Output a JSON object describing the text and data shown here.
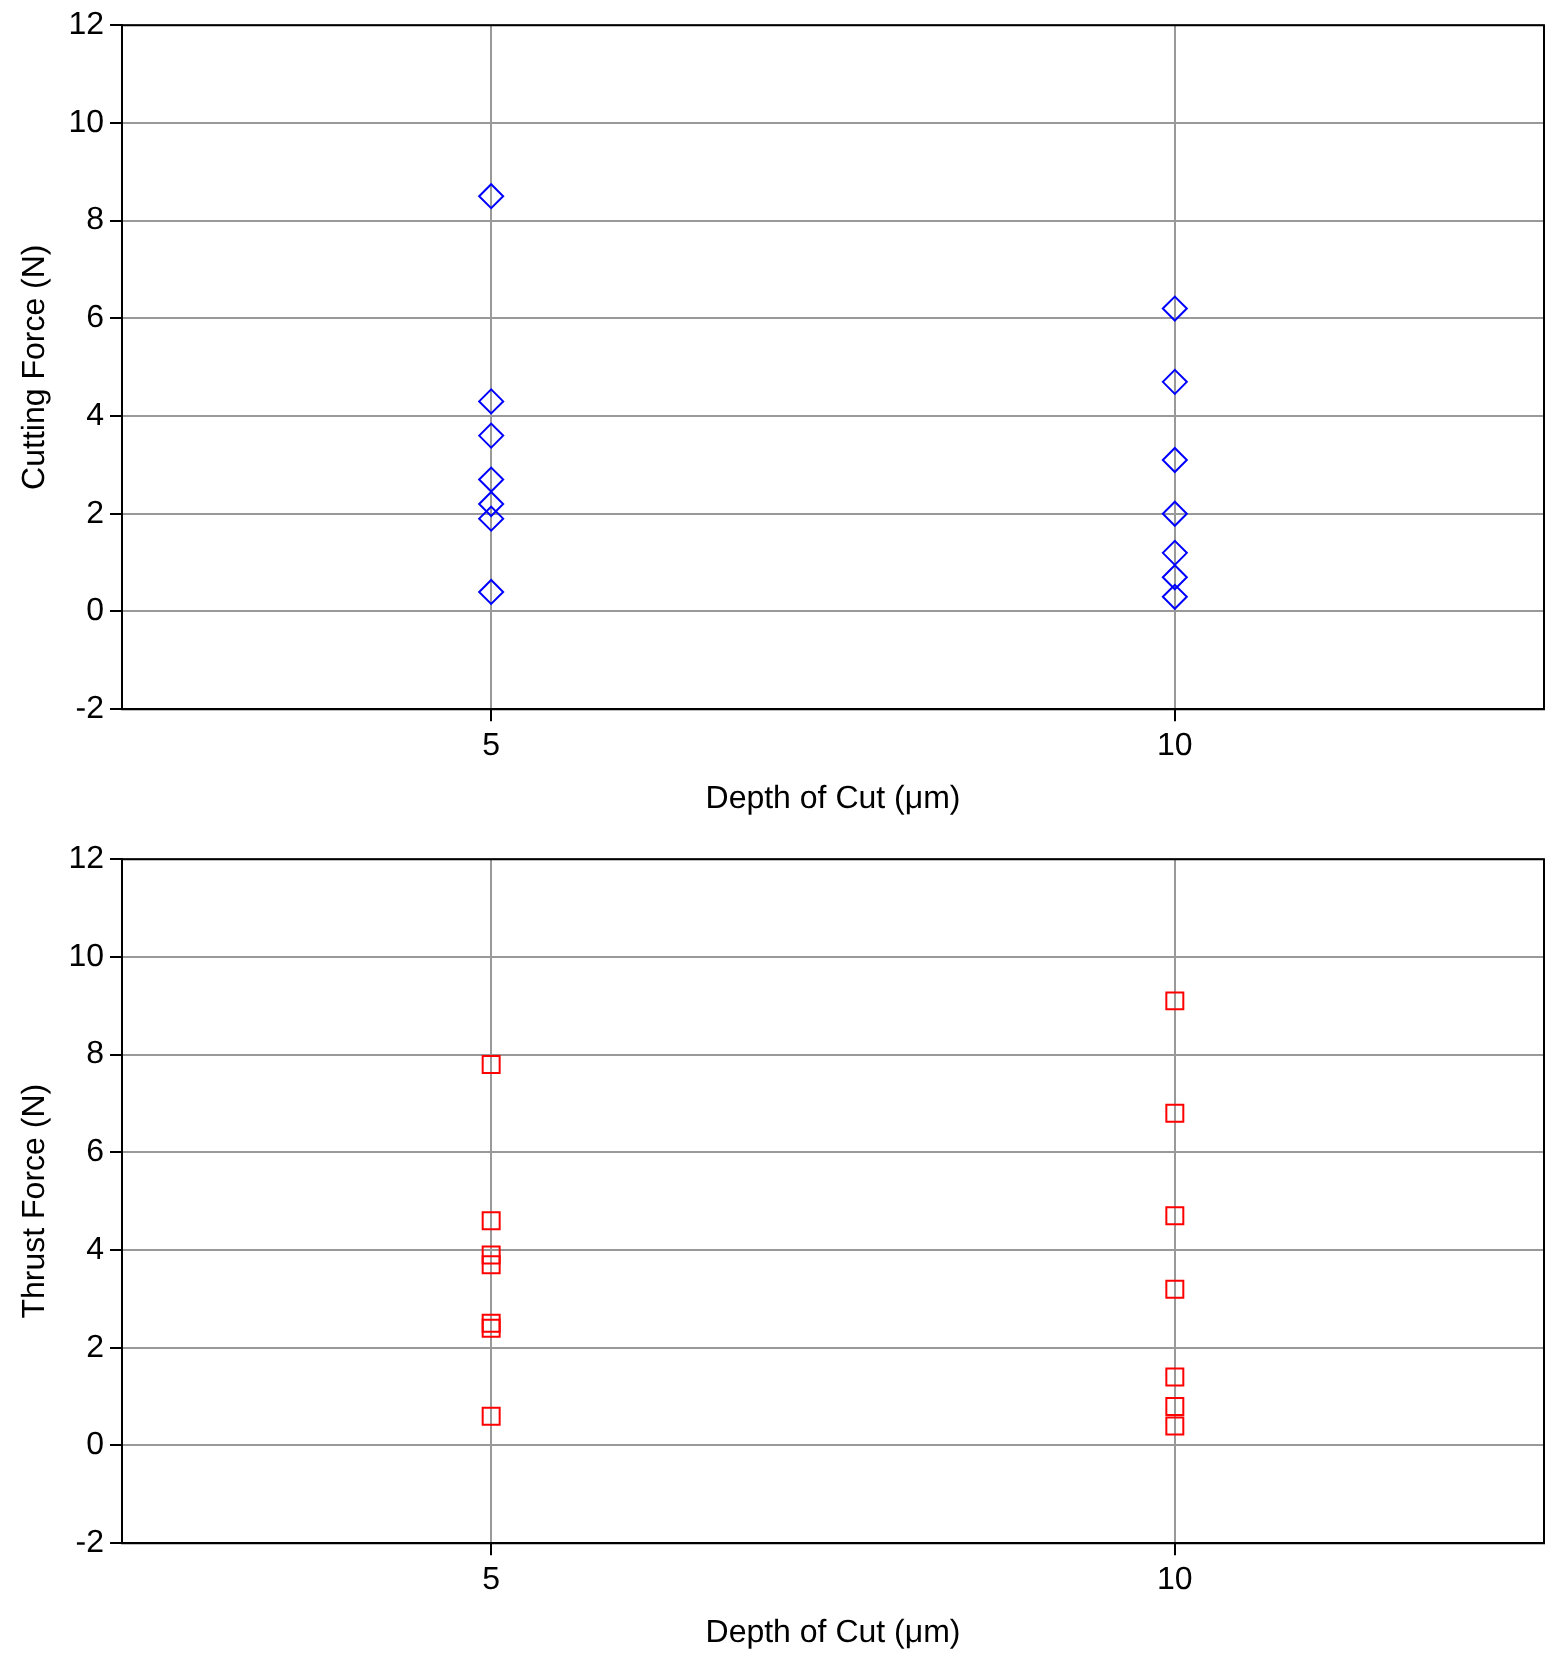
{
  "chart_data": [
    {
      "type": "scatter",
      "xlabel": "Depth of Cut (μm)",
      "ylabel": "Cutting Force (N)",
      "categories": [
        "5",
        "10"
      ],
      "ylim": [
        -2,
        12
      ],
      "yticks": [
        -2,
        0,
        2,
        4,
        6,
        8,
        10,
        12
      ],
      "grid": true,
      "legend": false,
      "marker": "diamond",
      "series": [
        {
          "color": "#0000ff",
          "x": [
            "5",
            "5",
            "5",
            "5",
            "5",
            "5",
            "5",
            "10",
            "10",
            "10",
            "10",
            "10",
            "10",
            "10"
          ],
          "values": [
            8.5,
            4.3,
            3.6,
            2.7,
            2.2,
            1.9,
            0.4,
            6.2,
            4.7,
            3.1,
            2.0,
            1.2,
            0.7,
            0.3
          ]
        }
      ]
    },
    {
      "type": "scatter",
      "xlabel": "Depth of Cut (μm)",
      "ylabel": "Thrust Force (N)",
      "categories": [
        "5",
        "10"
      ],
      "ylim": [
        -2,
        12
      ],
      "yticks": [
        -2,
        0,
        2,
        4,
        6,
        8,
        10,
        12
      ],
      "grid": true,
      "legend": false,
      "marker": "square",
      "series": [
        {
          "color": "#ff0000",
          "x": [
            "5",
            "5",
            "5",
            "5",
            "5",
            "5",
            "5",
            "10",
            "10",
            "10",
            "10",
            "10",
            "10",
            "10"
          ],
          "values": [
            7.8,
            4.6,
            3.9,
            3.7,
            2.5,
            2.4,
            0.6,
            9.1,
            6.8,
            4.7,
            3.2,
            1.4,
            0.8,
            0.4
          ]
        }
      ]
    }
  ]
}
